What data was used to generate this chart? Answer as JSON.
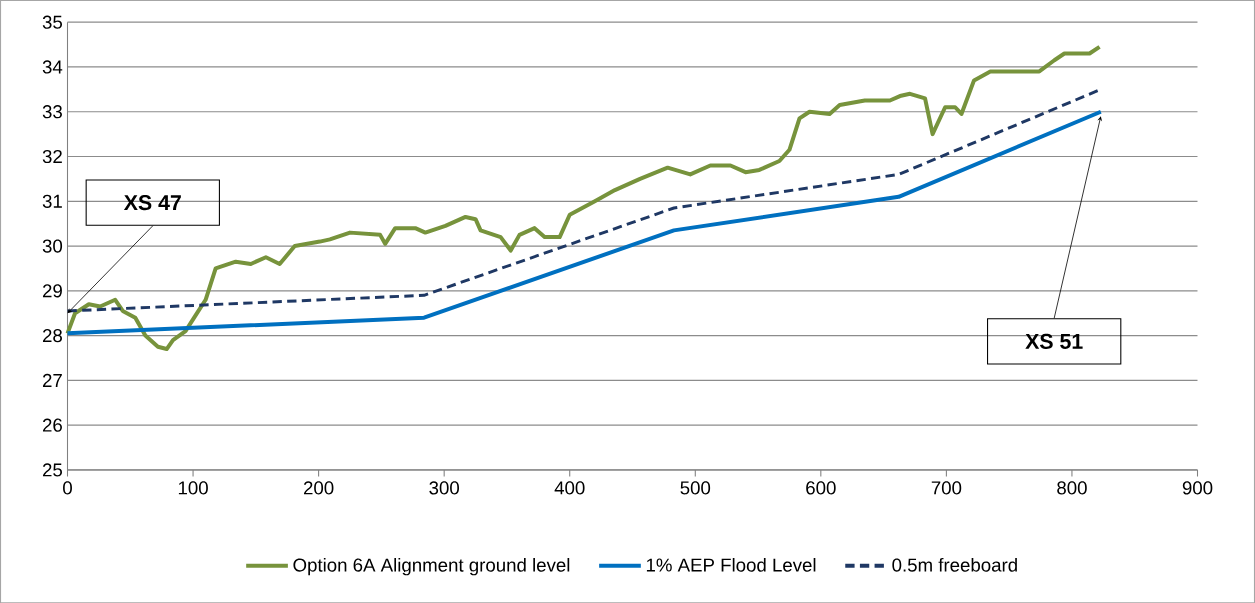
{
  "chart_data": {
    "type": "line",
    "xlim": [
      0,
      900
    ],
    "xticks": [
      0,
      100,
      200,
      300,
      400,
      500,
      600,
      700,
      800,
      900
    ],
    "ylim": [
      25,
      35
    ],
    "yticks": [
      25,
      26,
      27,
      28,
      29,
      30,
      31,
      32,
      33,
      34,
      35
    ],
    "grid": "y",
    "legend": "bottom",
    "marker": "none",
    "annotations": [
      {
        "text": "XS 47",
        "x": 0,
        "y": 28.5
      },
      {
        "text": "XS 51",
        "x": 823,
        "y": 32.9
      }
    ],
    "series": [
      {
        "name": "Option 6A Alignment ground level",
        "color": "#77933c",
        "line_style": "solid",
        "x": [
          0,
          6,
          17,
          26,
          38,
          44,
          54,
          62,
          72,
          79,
          84,
          94,
          102,
          110,
          118,
          134,
          146,
          158,
          169,
          181,
          201,
          209,
          225,
          249,
          253,
          261,
          277,
          285,
          301,
          317,
          325,
          329,
          345,
          353,
          360,
          372,
          380,
          392,
          400,
          420,
          436,
          456,
          478,
          496,
          512,
          528,
          540,
          551,
          567,
          575,
          583,
          591,
          607,
          615,
          635,
          655,
          663,
          671,
          683,
          689,
          699,
          707,
          712,
          722,
          735,
          750,
          762,
          774,
          786,
          794,
          806,
          814,
          822
        ],
        "values": [
          28.05,
          28.5,
          28.7,
          28.65,
          28.8,
          28.55,
          28.4,
          28.0,
          27.75,
          27.7,
          27.9,
          28.1,
          28.45,
          28.8,
          29.5,
          29.65,
          29.6,
          29.75,
          29.6,
          30.0,
          30.1,
          30.15,
          30.3,
          30.25,
          30.05,
          30.4,
          30.4,
          30.3,
          30.45,
          30.65,
          30.6,
          30.35,
          30.2,
          29.9,
          30.25,
          30.4,
          30.2,
          30.2,
          30.7,
          31.0,
          31.25,
          31.5,
          31.75,
          31.6,
          31.8,
          31.8,
          31.65,
          31.7,
          31.9,
          32.15,
          32.85,
          33.0,
          32.95,
          33.15,
          33.25,
          33.25,
          33.35,
          33.4,
          33.3,
          32.5,
          33.1,
          33.1,
          32.95,
          33.7,
          33.9,
          33.9,
          33.9,
          33.9,
          34.15,
          34.3,
          34.3,
          34.3,
          34.45
        ]
      },
      {
        "name": "1% AEP Flood Level",
        "color": "#0070c0",
        "line_style": "solid",
        "x": [
          0,
          284,
          483,
          662,
          823
        ],
        "values": [
          28.05,
          28.4,
          30.35,
          31.1,
          33.0
        ]
      },
      {
        "name": "0.5m freeboard",
        "color": "#1f3864",
        "line_style": "dashed",
        "x": [
          0,
          284,
          483,
          662,
          823
        ],
        "values": [
          28.55,
          28.9,
          30.85,
          31.6,
          33.5
        ]
      }
    ]
  }
}
